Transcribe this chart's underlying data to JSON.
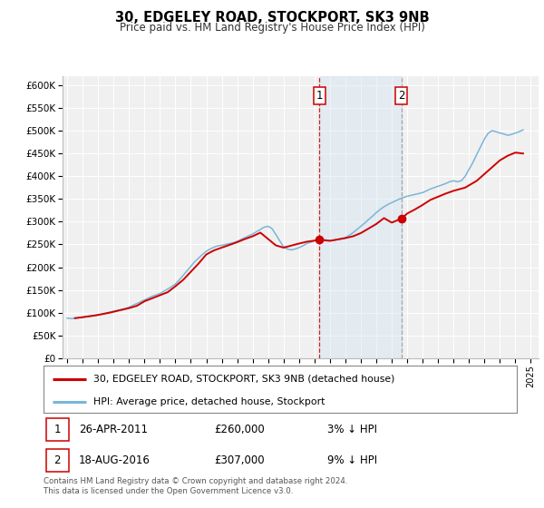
{
  "title": "30, EDGELEY ROAD, STOCKPORT, SK3 9NB",
  "subtitle": "Price paid vs. HM Land Registry's House Price Index (HPI)",
  "hpi_color": "#7ab5d8",
  "price_color": "#cc0000",
  "marker_color": "#cc0000",
  "background_color": "#ffffff",
  "plot_bg_color": "#f0f0f0",
  "shaded_region_color": "#ccdff0",
  "ylim": [
    0,
    620000
  ],
  "yticks": [
    0,
    50000,
    100000,
    150000,
    200000,
    250000,
    300000,
    350000,
    400000,
    450000,
    500000,
    550000,
    600000
  ],
  "ytick_labels": [
    "£0",
    "£50K",
    "£100K",
    "£150K",
    "£200K",
    "£250K",
    "£300K",
    "£350K",
    "£400K",
    "£450K",
    "£500K",
    "£550K",
    "£600K"
  ],
  "xlim_start": 1994.7,
  "xlim_end": 2025.5,
  "xticks": [
    1995,
    1996,
    1997,
    1998,
    1999,
    2000,
    2001,
    2002,
    2003,
    2004,
    2005,
    2006,
    2007,
    2008,
    2009,
    2010,
    2011,
    2012,
    2013,
    2014,
    2015,
    2016,
    2017,
    2018,
    2019,
    2020,
    2021,
    2022,
    2023,
    2024,
    2025
  ],
  "sale1_x": 2011.32,
  "sale1_y": 260000,
  "sale1_label": "26-APR-2011",
  "sale1_price": "£260,000",
  "sale1_hpi": "3% ↓ HPI",
  "sale2_x": 2016.63,
  "sale2_y": 307000,
  "sale2_label": "18-AUG-2016",
  "sale2_price": "£307,000",
  "sale2_hpi": "9% ↓ HPI",
  "legend_label1": "30, EDGELEY ROAD, STOCKPORT, SK3 9NB (detached house)",
  "legend_label2": "HPI: Average price, detached house, Stockport",
  "footnote": "Contains HM Land Registry data © Crown copyright and database right 2024.\nThis data is licensed under the Open Government Licence v3.0.",
  "hpi_data_x": [
    1995.0,
    1995.25,
    1995.5,
    1995.75,
    1996.0,
    1996.25,
    1996.5,
    1996.75,
    1997.0,
    1997.25,
    1997.5,
    1997.75,
    1998.0,
    1998.25,
    1998.5,
    1998.75,
    1999.0,
    1999.25,
    1999.5,
    1999.75,
    2000.0,
    2000.25,
    2000.5,
    2000.75,
    2001.0,
    2001.25,
    2001.5,
    2001.75,
    2002.0,
    2002.25,
    2002.5,
    2002.75,
    2003.0,
    2003.25,
    2003.5,
    2003.75,
    2004.0,
    2004.25,
    2004.5,
    2004.75,
    2005.0,
    2005.25,
    2005.5,
    2005.75,
    2006.0,
    2006.25,
    2006.5,
    2006.75,
    2007.0,
    2007.25,
    2007.5,
    2007.75,
    2008.0,
    2008.25,
    2008.5,
    2008.75,
    2009.0,
    2009.25,
    2009.5,
    2009.75,
    2010.0,
    2010.25,
    2010.5,
    2010.75,
    2011.0,
    2011.25,
    2011.5,
    2011.75,
    2012.0,
    2012.25,
    2012.5,
    2012.75,
    2013.0,
    2013.25,
    2013.5,
    2013.75,
    2014.0,
    2014.25,
    2014.5,
    2014.75,
    2015.0,
    2015.25,
    2015.5,
    2015.75,
    2016.0,
    2016.25,
    2016.5,
    2016.75,
    2017.0,
    2017.25,
    2017.5,
    2017.75,
    2018.0,
    2018.25,
    2018.5,
    2018.75,
    2019.0,
    2019.25,
    2019.5,
    2019.75,
    2020.0,
    2020.25,
    2020.5,
    2020.75,
    2021.0,
    2021.25,
    2021.5,
    2021.75,
    2022.0,
    2022.25,
    2022.5,
    2022.75,
    2023.0,
    2023.25,
    2023.5,
    2023.75,
    2024.0,
    2024.25,
    2024.5
  ],
  "hpi_data_y": [
    88000,
    87000,
    87500,
    89000,
    90000,
    91000,
    92000,
    93500,
    95000,
    97000,
    99000,
    101000,
    103000,
    105000,
    107000,
    109000,
    112000,
    116000,
    120000,
    124000,
    128000,
    132000,
    136000,
    139000,
    142000,
    147000,
    152000,
    157000,
    163000,
    172000,
    182000,
    192000,
    202000,
    212000,
    220000,
    228000,
    235000,
    240000,
    244000,
    247000,
    248000,
    250000,
    252000,
    254000,
    257000,
    261000,
    265000,
    269000,
    273000,
    278000,
    283000,
    288000,
    290000,
    285000,
    272000,
    258000,
    245000,
    240000,
    238000,
    240000,
    243000,
    247000,
    252000,
    255000,
    258000,
    260000,
    261000,
    260000,
    258000,
    259000,
    261000,
    263000,
    265000,
    270000,
    276000,
    283000,
    290000,
    297000,
    305000,
    312000,
    320000,
    327000,
    333000,
    338000,
    342000,
    346000,
    350000,
    353000,
    356000,
    358000,
    360000,
    362000,
    364000,
    368000,
    372000,
    375000,
    378000,
    381000,
    384000,
    388000,
    390000,
    388000,
    390000,
    400000,
    415000,
    430000,
    448000,
    465000,
    482000,
    495000,
    500000,
    498000,
    495000,
    493000,
    490000,
    492000,
    495000,
    498000,
    502000
  ],
  "price_data_x": [
    1995.5,
    1996.0,
    1997.0,
    1997.75,
    1998.5,
    1999.0,
    1999.5,
    2000.0,
    2000.75,
    2001.5,
    2002.0,
    2002.5,
    2003.0,
    2003.5,
    2004.0,
    2004.5,
    2005.0,
    2006.0,
    2006.5,
    2007.0,
    2007.5,
    2008.5,
    2009.0,
    2010.0,
    2010.5,
    2011.32,
    2012.0,
    2013.0,
    2013.5,
    2014.0,
    2014.5,
    2015.0,
    2015.5,
    2016.0,
    2016.63,
    2017.0,
    2017.5,
    2018.0,
    2018.5,
    2019.0,
    2019.5,
    2020.0,
    2020.75,
    2021.5,
    2022.0,
    2022.5,
    2023.0,
    2023.5,
    2024.0,
    2024.5
  ],
  "price_data_y": [
    88000,
    90000,
    95000,
    100000,
    106000,
    110000,
    115000,
    125000,
    135000,
    145000,
    158000,
    172000,
    190000,
    208000,
    228000,
    237000,
    243000,
    255000,
    262000,
    268000,
    276000,
    248000,
    243000,
    252000,
    256000,
    260000,
    258000,
    264000,
    268000,
    275000,
    285000,
    295000,
    308000,
    298000,
    307000,
    318000,
    327000,
    337000,
    348000,
    355000,
    362000,
    368000,
    375000,
    390000,
    405000,
    420000,
    435000,
    445000,
    452000,
    450000
  ]
}
